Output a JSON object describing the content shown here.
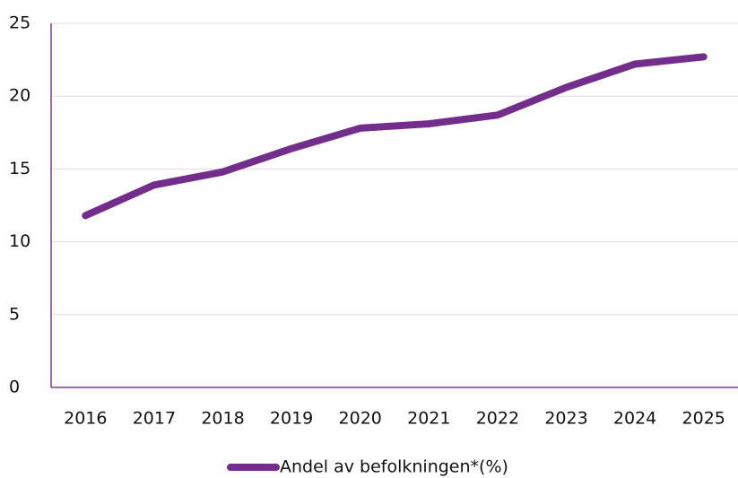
{
  "chart_data": {
    "type": "line",
    "categories": [
      "2016",
      "2017",
      "2018",
      "2019",
      "2020",
      "2021",
      "2022",
      "2023",
      "2024",
      "2025"
    ],
    "series": [
      {
        "name": "Andel av befolkningen*(%)",
        "color": "#722e8a",
        "values": [
          11.8,
          13.9,
          14.8,
          16.4,
          17.8,
          18.1,
          18.7,
          20.6,
          22.2,
          22.7
        ]
      }
    ],
    "ylim": [
      0,
      25
    ],
    "yticks": [
      0,
      5,
      10,
      15,
      20,
      25
    ],
    "grid": true,
    "legend": "bottom"
  }
}
